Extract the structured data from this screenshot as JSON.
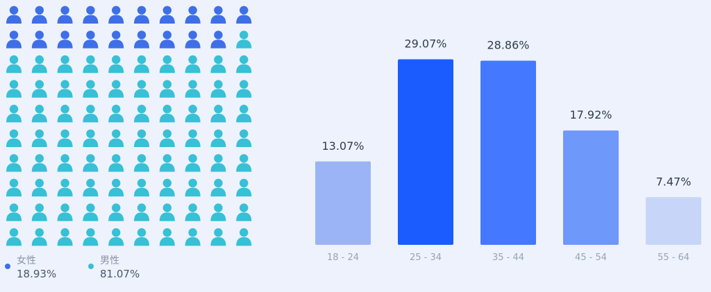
{
  "chart_data": [
    {
      "type": "pictogram",
      "total_icons": 100,
      "series": [
        {
          "name": "女性",
          "value_label": "18.93%",
          "value": 18.93,
          "color": "#3f6fe8"
        },
        {
          "name": "男性",
          "value_label": "81.07%",
          "value": 81.07,
          "color": "#37c0d6"
        }
      ],
      "legend_position": "bottom-left"
    },
    {
      "type": "bar",
      "categories": [
        "18 - 24",
        "25 - 34",
        "35 - 44",
        "45 - 54",
        "55 - 64"
      ],
      "values": [
        13.07,
        29.07,
        28.86,
        17.92,
        7.47
      ],
      "labels": [
        "13.07%",
        "29.07%",
        "28.86%",
        "17.92%",
        "7.47%"
      ],
      "colors": [
        "#9bb4f6",
        "#1a5cff",
        "#4479ff",
        "#6f98fb",
        "#c7d5f9"
      ],
      "ylim": [
        0,
        30
      ],
      "grid": false
    }
  ]
}
